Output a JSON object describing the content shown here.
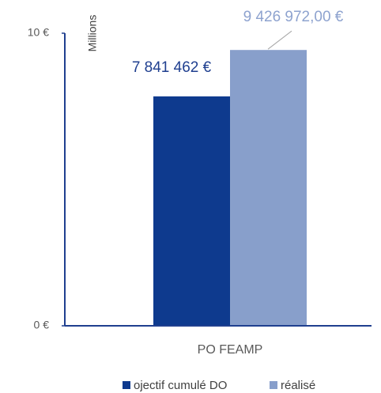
{
  "chart_data": {
    "type": "bar",
    "categories": [
      "PO FEAMP"
    ],
    "series": [
      {
        "name": "ojectif cumulé DO",
        "color": "#0e3a8e",
        "values": [
          7.841462
        ],
        "value_labels": [
          "7 841 462 €"
        ],
        "label_color": "#1f3f8f"
      },
      {
        "name": "réalisé",
        "color": "#889fcb",
        "values": [
          9.426972
        ],
        "value_labels": [
          "9 426 972,00 €"
        ],
        "label_color": "#8ea3cf"
      }
    ],
    "y_axis_label": "Millions",
    "ylim": [
      0,
      10
    ],
    "yticks": [
      {
        "value": 0,
        "label": "0 €"
      },
      {
        "value": 10,
        "label": "10 €"
      }
    ]
  }
}
